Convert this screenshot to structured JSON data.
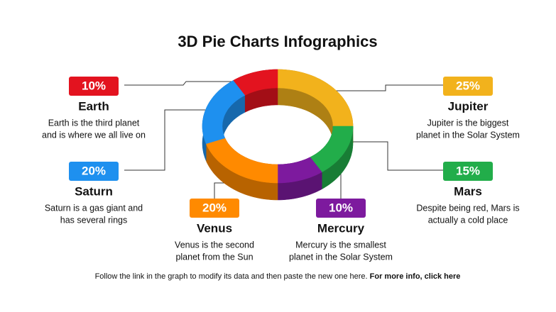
{
  "chart_data": {
    "type": "pie",
    "title": "3D Pie Charts Infographics",
    "categories": [
      "Jupiter",
      "Mars",
      "Mercury",
      "Venus",
      "Saturn",
      "Earth"
    ],
    "values": [
      25,
      15,
      10,
      20,
      20,
      10
    ],
    "value_labels": [
      "25%",
      "15%",
      "10%",
      "20%",
      "20%",
      "10%"
    ],
    "colors": [
      "#f2b21c",
      "#22ad4a",
      "#7d1a9e",
      "#ff8a00",
      "#1e90ef",
      "#e3131f"
    ],
    "descriptions": [
      [
        "Jupiter is the biggest",
        "planet in the Solar System"
      ],
      [
        "Despite being red, Mars is",
        "actually a cold place"
      ],
      [
        "Mercury is the smallest",
        "planet in the Solar System"
      ],
      [
        "Venus is the second",
        "planet from the Sun"
      ],
      [
        "Saturn is a gas giant and",
        "has several rings"
      ],
      [
        "Earth is the third planet",
        "and is where we all live on"
      ]
    ],
    "footer": "Follow the link in the graph to modify its data and then paste the new one here.",
    "footer_link": "For more info, click here"
  }
}
